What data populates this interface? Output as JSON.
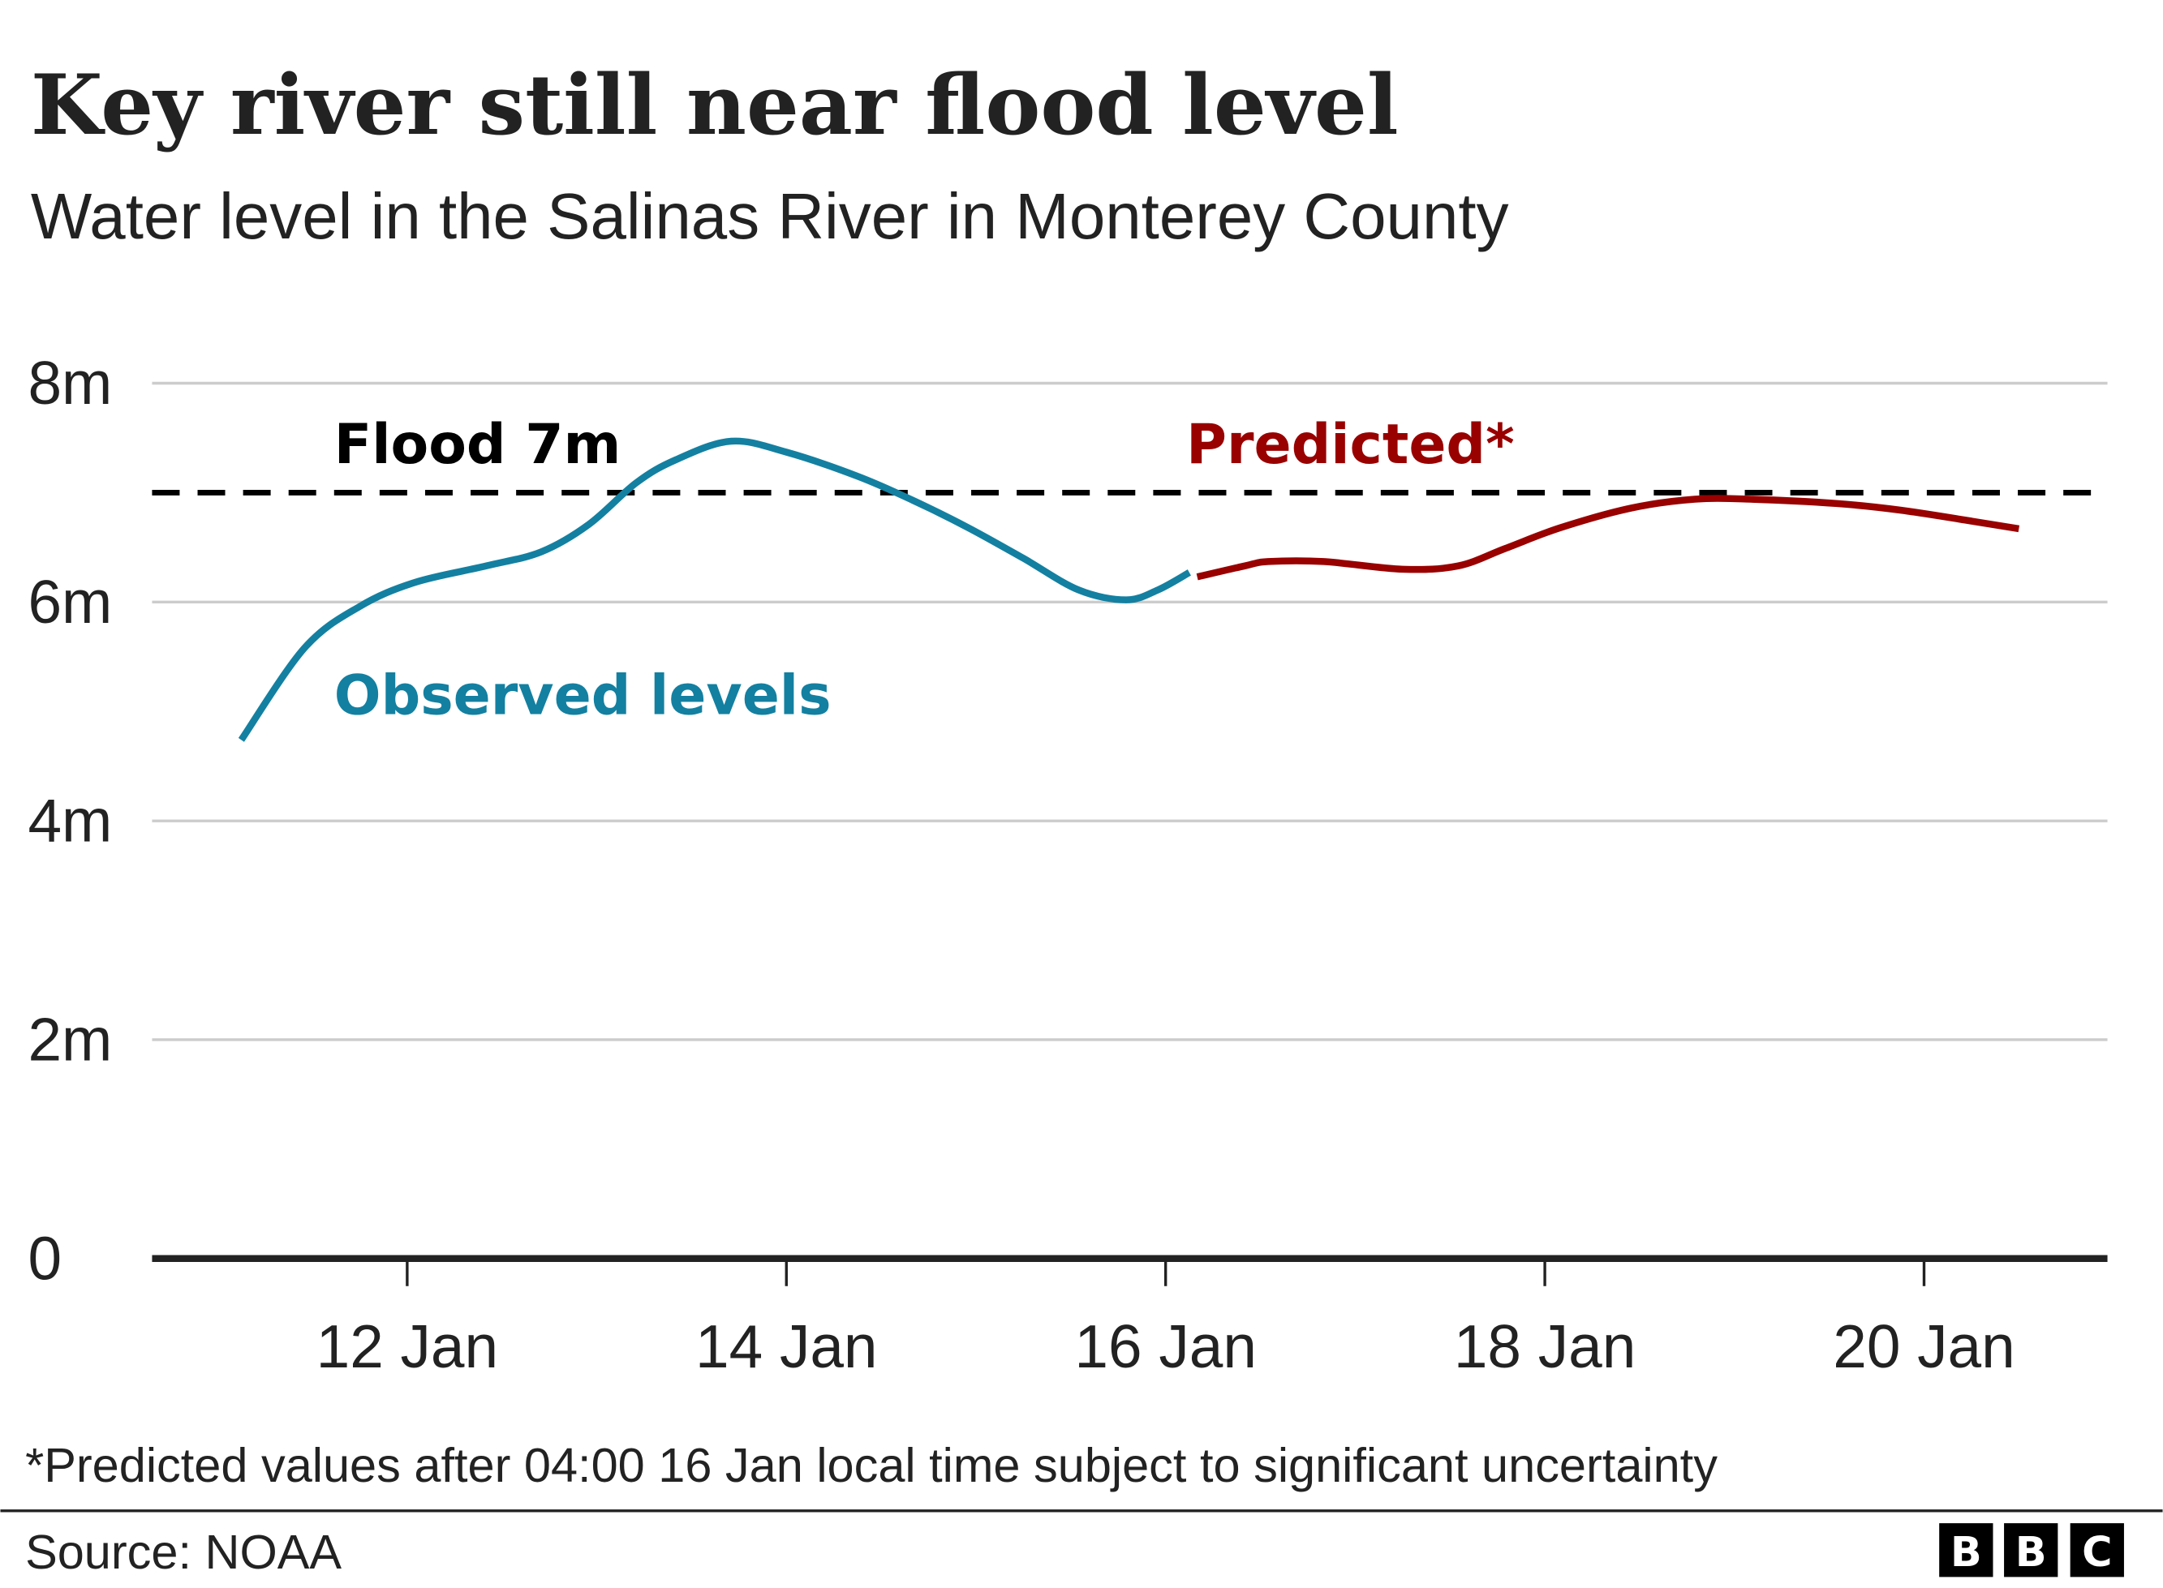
{
  "title": "Key river still near flood level",
  "subtitle": "Water level in the Salinas River in Monterey County",
  "footnote": "*Predicted values after 04:00 16 Jan local time subject to significant uncertainty",
  "source": "Source: NOAA",
  "logo": [
    "B",
    "B",
    "C"
  ],
  "chart_data": {
    "type": "line",
    "title": "Key river still near flood level",
    "subtitle": "Water level in the Salinas River in Monterey County",
    "xlabel": "",
    "ylabel": "",
    "ylim": [
      0,
      8
    ],
    "xlim": [
      "10 Jan 16:00",
      "21 Jan 04:00"
    ],
    "grid": true,
    "yticks": [
      {
        "value": 0,
        "label": "0"
      },
      {
        "value": 2,
        "label": "2m"
      },
      {
        "value": 4,
        "label": "4m"
      },
      {
        "value": 6,
        "label": "6m"
      },
      {
        "value": 8,
        "label": "8m"
      }
    ],
    "xticks": [
      {
        "value": "12 Jan 00:00",
        "label": "12 Jan"
      },
      {
        "value": "14 Jan 00:00",
        "label": "14 Jan"
      },
      {
        "value": "16 Jan 00:00",
        "label": "16 Jan"
      },
      {
        "value": "18 Jan 00:00",
        "label": "18 Jan"
      },
      {
        "value": "20 Jan 00:00",
        "label": "20 Jan"
      }
    ],
    "reference_line": {
      "value": 7,
      "label": "Flood 7m",
      "style": "dashed",
      "color": "#000000"
    },
    "series": [
      {
        "name": "Observed levels",
        "color": "#1380A1",
        "points": [
          [
            "11 Jan 03:00",
            4.74
          ],
          [
            "11 Jan 11:00",
            5.58
          ],
          [
            "11 Jan 18:00",
            5.96
          ],
          [
            "12 Jan 01:00",
            6.18
          ],
          [
            "12 Jan 10:00",
            6.33
          ],
          [
            "12 Jan 17:00",
            6.46
          ],
          [
            "12 Jan 23:00",
            6.71
          ],
          [
            "13 Jan 05:00",
            7.09
          ],
          [
            "13 Jan 10:00",
            7.3
          ],
          [
            "13 Jan 17:00",
            7.47
          ],
          [
            "14 Jan 00:00",
            7.37
          ],
          [
            "14 Jan 09:00",
            7.15
          ],
          [
            "14 Jan 16:00",
            6.93
          ],
          [
            "14 Jan 23:00",
            6.68
          ],
          [
            "15 Jan 06:00",
            6.4
          ],
          [
            "15 Jan 13:00",
            6.11
          ],
          [
            "15 Jan 19:00",
            6.02
          ],
          [
            "15 Jan 23:00",
            6.11
          ],
          [
            "16 Jan 03:00",
            6.27
          ]
        ]
      },
      {
        "name": "Predicted*",
        "color": "#990000",
        "points": [
          [
            "16 Jan 04:00",
            6.23
          ],
          [
            "16 Jan 10:00",
            6.33
          ],
          [
            "16 Jan 13:00",
            6.37
          ],
          [
            "16 Jan 20:00",
            6.37
          ],
          [
            "17 Jan 06:00",
            6.3
          ],
          [
            "17 Jan 13:00",
            6.33
          ],
          [
            "17 Jan 19:00",
            6.49
          ],
          [
            "18 Jan 02:00",
            6.68
          ],
          [
            "18 Jan 11:00",
            6.86
          ],
          [
            "18 Jan 19:00",
            6.94
          ],
          [
            "19 Jan 02:00",
            6.94
          ],
          [
            "19 Jan 13:00",
            6.9
          ],
          [
            "19 Jan 21:00",
            6.84
          ],
          [
            "20 Jan 06:00",
            6.74
          ],
          [
            "20 Jan 12:00",
            6.67
          ]
        ]
      }
    ]
  }
}
